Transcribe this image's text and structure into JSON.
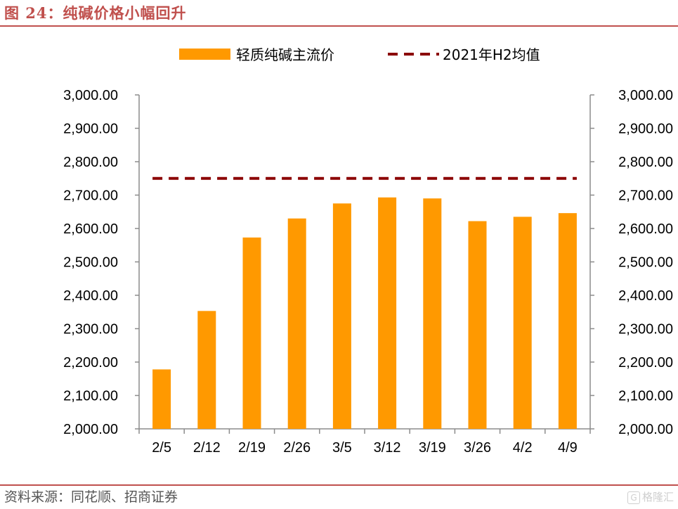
{
  "header": {
    "title": "图 24：纯碱价格小幅回升"
  },
  "footer": {
    "source": "资料来源：同花顺、招商证券",
    "watermark": "格隆汇",
    "watermark_logo": "G"
  },
  "colors": {
    "bar": "#FF9900",
    "reference_line": "#8B0000",
    "accent": "#C0504D"
  },
  "chart_data": {
    "type": "bar",
    "categories": [
      "2/5",
      "2/12",
      "2/19",
      "2/26",
      "3/5",
      "3/12",
      "3/19",
      "3/26",
      "4/2",
      "4/9"
    ],
    "series": [
      {
        "name": "轻质纯碱主流价",
        "type": "bar",
        "values": [
          2178,
          2353,
          2573,
          2630,
          2675,
          2693,
          2690,
          2622,
          2635,
          2646
        ]
      },
      {
        "name": "2021年H2均值",
        "type": "line",
        "style": "dashed",
        "values": [
          2750,
          2750,
          2750,
          2750,
          2750,
          2750,
          2750,
          2750,
          2750,
          2750
        ]
      }
    ],
    "title": "",
    "xlabel": "",
    "ylabel": "",
    "ylim": [
      2000,
      3000
    ],
    "y_ticks": [
      "2,000.00",
      "2,100.00",
      "2,200.00",
      "2,300.00",
      "2,400.00",
      "2,500.00",
      "2,600.00",
      "2,700.00",
      "2,800.00",
      "2,900.00",
      "3,000.00"
    ],
    "y2_ticks": [
      "2,000.00",
      "2,100.00",
      "2,200.00",
      "2,300.00",
      "2,400.00",
      "2,500.00",
      "2,600.00",
      "2,700.00",
      "2,800.00",
      "2,900.00",
      "3,000.00"
    ],
    "legend_position": "top",
    "grid": false
  }
}
